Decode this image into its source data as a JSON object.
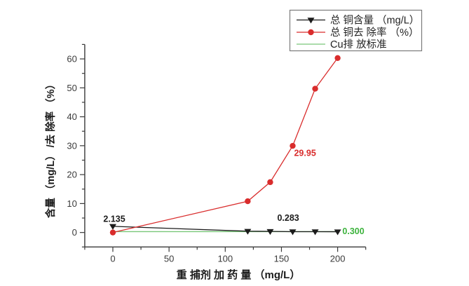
{
  "chart_data": {
    "type": "line",
    "title": "",
    "xlabel": "重 捕剂 加 药 量 （mg/L）",
    "ylabel": "含量 （mg/L） /去 除率 （%）",
    "x": [
      0,
      120,
      140,
      160,
      180,
      200
    ],
    "series": [
      {
        "name": "总 铜含量 （mg/L）",
        "color": "#1b1b1b",
        "marker": "triangle-down",
        "values": [
          2.135,
          0.45,
          0.38,
          0.283,
          0.28,
          0.27
        ]
      },
      {
        "name": "总 铜去 除率 （%）",
        "color": "#d92c2c",
        "marker": "circle",
        "values": [
          0,
          10.8,
          17.4,
          29.95,
          49.7,
          60.3
        ]
      },
      {
        "name": "Cu排 放标准",
        "color": "#79c879",
        "marker": "none",
        "values": [
          0.3,
          0.3,
          0.3,
          0.3,
          0.3,
          0.3
        ]
      }
    ],
    "xlim": [
      -25,
      225
    ],
    "ylim": [
      -5,
      65
    ],
    "xticks": [
      0,
      50,
      100,
      150,
      200
    ],
    "yticks": [
      0,
      10,
      20,
      30,
      40,
      50,
      60
    ],
    "minor_tick_step_x": 25,
    "minor_tick_step_y": 5,
    "grid": false,
    "legend_position": "top-right",
    "annotations": [
      {
        "text": "2.135",
        "x": 1.3,
        "y": 4.7,
        "color": "#1b1b1b"
      },
      {
        "text": "0.283",
        "x": 156,
        "y": 5.0,
        "color": "#1b1b1b"
      },
      {
        "text": "29.95",
        "x": 171,
        "y": 27.4,
        "color": "#d92c2c"
      },
      {
        "text": "0.300",
        "x": 214,
        "y": 0.35,
        "color": "#3db33d"
      }
    ],
    "colors": {
      "axis": "#3a3a3a",
      "tick_label": "#3a3a3a",
      "legend_border": "#7a7a7a",
      "legend_text": "#222222",
      "background": "#ffffff"
    }
  }
}
